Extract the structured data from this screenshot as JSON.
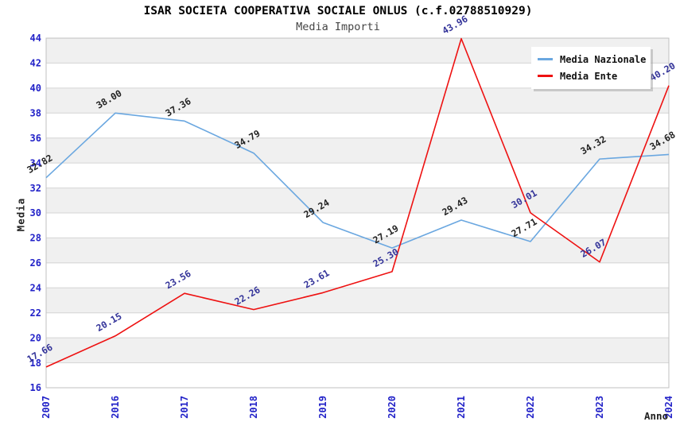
{
  "chart_data": {
    "type": "line",
    "title": "ISAR SOCIETA COOPERATIVA SOCIALE ONLUS (c.f.02788510929)",
    "subtitle": "Media Importi",
    "xlabel": "Anno",
    "ylabel": "Media",
    "categories": [
      "2007",
      "2016",
      "2017",
      "2018",
      "2019",
      "2020",
      "2021",
      "2022",
      "2023",
      "2024"
    ],
    "series": [
      {
        "name": "Media Nazionale",
        "color": "#6aa7e0",
        "label_color": "#222222",
        "values": [
          32.82,
          38.0,
          37.36,
          34.79,
          29.24,
          27.19,
          29.43,
          27.71,
          34.32,
          34.68
        ]
      },
      {
        "name": "Media Ente",
        "color": "#ee1111",
        "label_color": "#333399",
        "values": [
          17.66,
          20.15,
          23.56,
          22.26,
          23.61,
          25.3,
          43.96,
          30.01,
          26.07,
          40.2
        ]
      }
    ],
    "ylim": [
      16,
      44
    ],
    "ytick_step": 2,
    "grid": true,
    "legend_position": "top-right",
    "band_colors": [
      "#ffffff",
      "#f0f0f0"
    ],
    "gridline_color": "#d4d4d4",
    "plot_border_color": "#c0c0c0",
    "tick_color": "#2222c8"
  }
}
